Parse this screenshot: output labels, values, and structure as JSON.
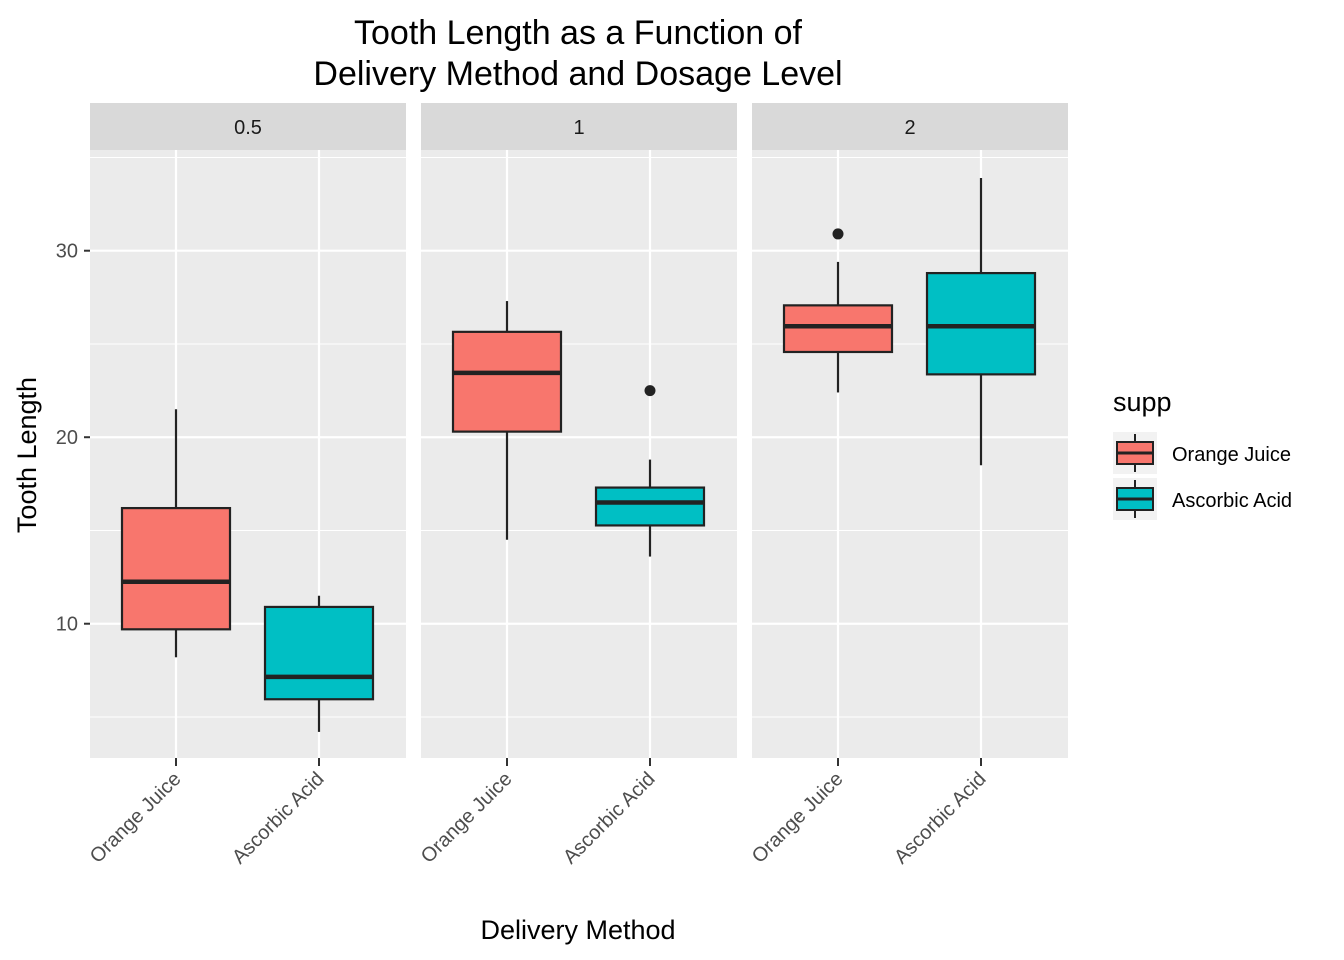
{
  "chart_data": {
    "type": "box",
    "title_line1": "Tooth Length as a Function of",
    "title_line2": "Delivery Method and Dosage Level",
    "xlabel": "Delivery Method",
    "ylabel": "Tooth Length",
    "ylim": [
      2.8,
      35.4
    ],
    "y_ticks": [
      10,
      20,
      30
    ],
    "y_tick_labels": [
      "10",
      "20",
      "30"
    ],
    "y_minor": [
      5,
      15,
      25,
      35
    ],
    "categories": [
      "Orange Juice",
      "Ascorbic Acid"
    ],
    "facets": [
      {
        "label": "0.5",
        "boxes": [
          {
            "supp": "Orange Juice",
            "lower_whisker": 8.2,
            "q1": 9.7,
            "median": 12.25,
            "q3": 16.2,
            "upper_whisker": 21.5,
            "outliers": []
          },
          {
            "supp": "Ascorbic Acid",
            "lower_whisker": 4.2,
            "q1": 5.95,
            "median": 7.15,
            "q3": 10.9,
            "upper_whisker": 11.5,
            "outliers": []
          }
        ]
      },
      {
        "label": "1",
        "boxes": [
          {
            "supp": "Orange Juice",
            "lower_whisker": 14.5,
            "q1": 20.3,
            "median": 23.45,
            "q3": 25.65,
            "upper_whisker": 27.3,
            "outliers": []
          },
          {
            "supp": "Ascorbic Acid",
            "lower_whisker": 13.6,
            "q1": 15.27,
            "median": 16.5,
            "q3": 17.3,
            "upper_whisker": 18.8,
            "outliers": [
              22.5
            ]
          }
        ]
      },
      {
        "label": "2",
        "boxes": [
          {
            "supp": "Orange Juice",
            "lower_whisker": 22.4,
            "q1": 24.57,
            "median": 25.95,
            "q3": 27.07,
            "upper_whisker": 29.4,
            "outliers": [
              30.9
            ]
          },
          {
            "supp": "Ascorbic Acid",
            "lower_whisker": 18.5,
            "q1": 23.37,
            "median": 25.95,
            "q3": 28.8,
            "upper_whisker": 33.9,
            "outliers": []
          }
        ]
      }
    ],
    "legend": {
      "title": "supp",
      "position": "right",
      "items": [
        {
          "label": "Orange Juice",
          "color": "#F8766D"
        },
        {
          "label": "Ascorbic Acid",
          "color": "#00BFC4"
        }
      ]
    },
    "colors": {
      "Orange Juice": "#F8766D",
      "Ascorbic Acid": "#00BFC4",
      "panel_background": "#EBEBEB",
      "strip_background": "#D9D9D9",
      "grid": "#FFFFFF"
    },
    "grid": true
  }
}
